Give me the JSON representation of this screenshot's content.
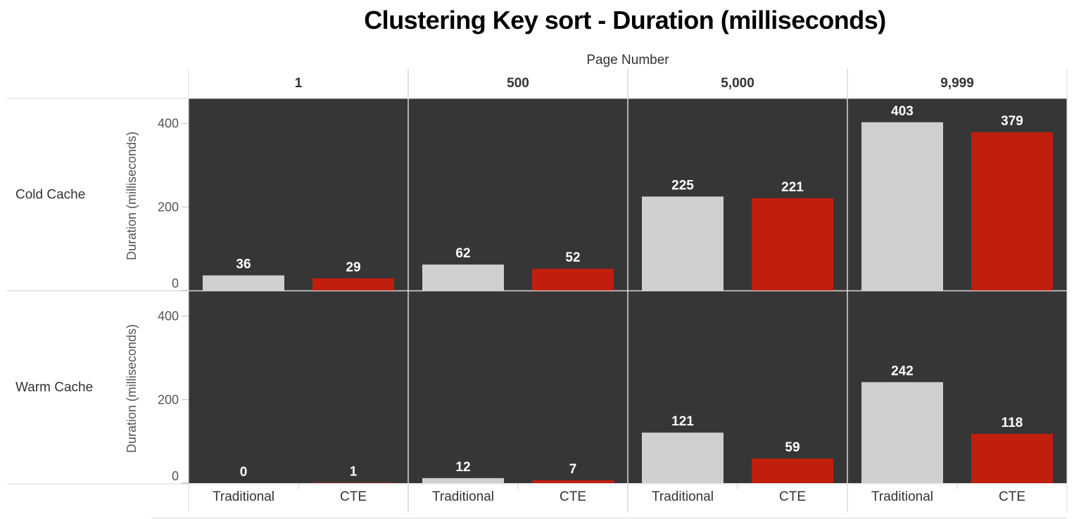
{
  "chart_data": {
    "type": "bar",
    "title": "Clustering Key sort - Duration (milliseconds)",
    "column_header": "Page Number",
    "columns": [
      "1",
      "500",
      "5,000",
      "9,999"
    ],
    "rows": [
      "Cold Cache",
      "Warm Cache"
    ],
    "categories": [
      "Traditional",
      "CTE"
    ],
    "ylabel": "Duration (milliseconds)",
    "ylim": [
      0,
      460
    ],
    "yticks": [
      0,
      200,
      400
    ],
    "colors": {
      "Traditional": "#cfcfcf",
      "CTE": "#c01f0e",
      "panel": "#363636"
    },
    "values": [
      [
        [
          36,
          29
        ],
        [
          62,
          52
        ],
        [
          225,
          221
        ],
        [
          403,
          379
        ]
      ],
      [
        [
          0,
          1
        ],
        [
          12,
          7
        ],
        [
          121,
          59
        ],
        [
          242,
          118
        ]
      ]
    ]
  }
}
